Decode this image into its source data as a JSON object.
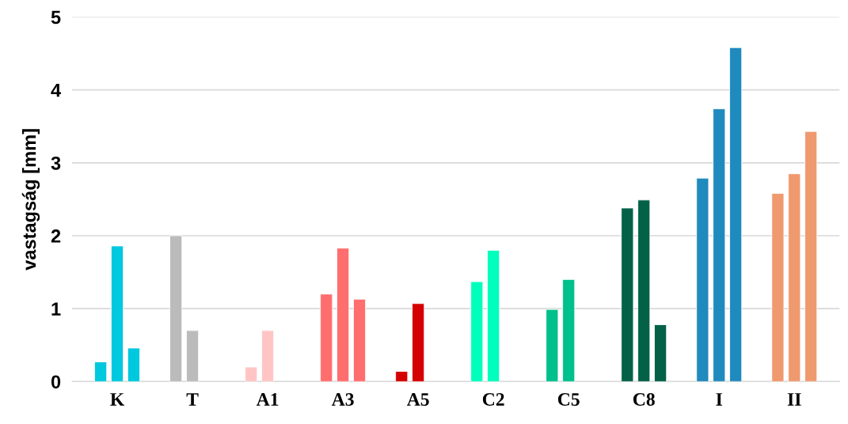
{
  "chart_data": {
    "type": "bar",
    "ylabel": "vastagság [mm]",
    "categories": [
      "K",
      "T",
      "A1",
      "A3",
      "A5",
      "C2",
      "C5",
      "C8",
      "I",
      "II"
    ],
    "series": [
      {
        "colors": [
          "#00c8de",
          "#bbbbbb",
          "#ffc5c5",
          "#ff6e6e",
          "#d50000",
          "#00ffbc",
          "#00c08b",
          "#026147",
          "#1f8abd",
          "#ef996f"
        ],
        "values": [
          0.27,
          2.0,
          0.2,
          1.2,
          0.14,
          1.37,
          0.99,
          2.38,
          2.79,
          2.58
        ]
      },
      {
        "colors": [
          "#00c8de",
          "#bbbbbb",
          "#ffc5c5",
          "#ff6e6e",
          "#d50000",
          "#00ffbc",
          "#00c08b",
          "#026147",
          "#1f8abd",
          "#ef996f"
        ],
        "values": [
          1.86,
          0.7,
          0.7,
          1.83,
          1.07,
          1.8,
          1.4,
          2.49,
          3.74,
          2.85
        ]
      },
      {
        "colors": [
          "#00c8de",
          "#bbbbbb",
          "#ffc5c5",
          "#ff6e6e",
          "#d50000",
          "#00ffbc",
          "#00c08b",
          "#026147",
          "#1f8abd",
          "#ef996f"
        ],
        "values": [
          0.46,
          null,
          null,
          1.13,
          null,
          null,
          null,
          0.78,
          4.58,
          3.43
        ]
      }
    ],
    "ylim": [
      0,
      5
    ],
    "yticks": [
      0,
      1,
      2,
      3,
      4,
      5
    ],
    "grid": "y"
  }
}
